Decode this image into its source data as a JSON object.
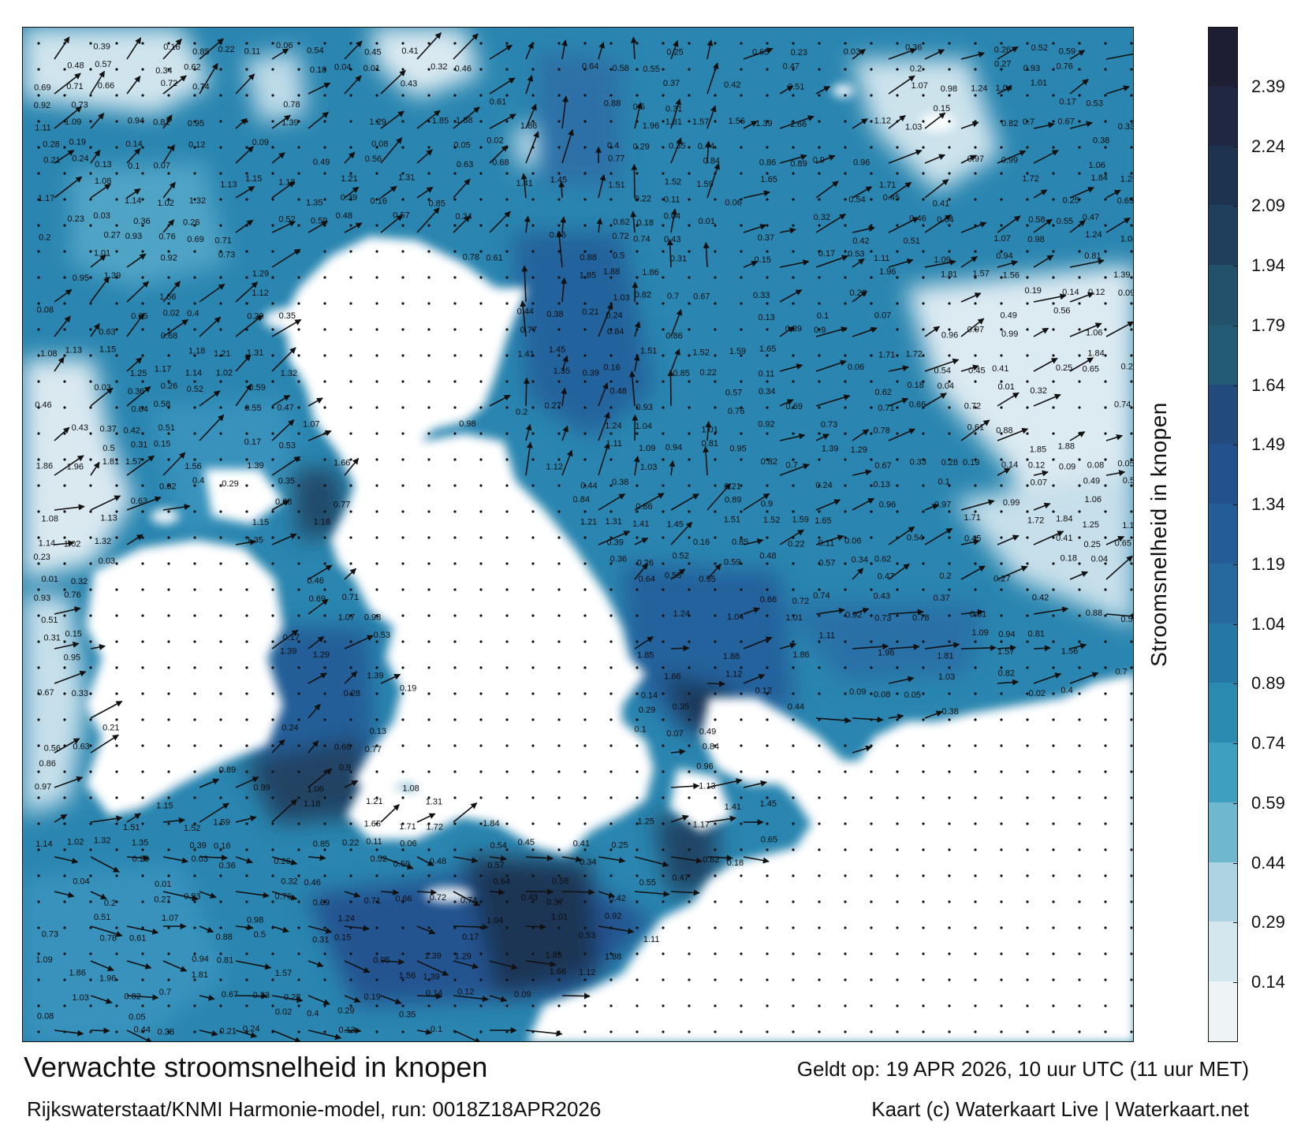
{
  "title": "Verwachte stroomsnelheid in knopen",
  "subtitle": "Rijkswaterstaat/KNMI Harmonie-model, run: 0018Z18APR2026",
  "valid_time": "Geldt op: 19 APR 2026, 10 uur UTC (11 uur MET)",
  "credit": "Kaart (c) Waterkaart Live | Waterkaart.net",
  "colorbar": {
    "title": "Stroomsnelheid in knopen",
    "ticks": [
      "0.14",
      "0.29",
      "0.44",
      "0.59",
      "0.74",
      "0.89",
      "1.04",
      "1.19",
      "1.34",
      "1.49",
      "1.64",
      "1.79",
      "1.94",
      "2.09",
      "2.24",
      "2.39"
    ],
    "colors": [
      "#eef3f6",
      "#d4e6ee",
      "#aed4e2",
      "#6fb7cf",
      "#3f9fc0",
      "#2a8ab0",
      "#2577a6",
      "#25699f",
      "#245c97",
      "#23518e",
      "#234a7c",
      "#245b74",
      "#23506a",
      "#1f3f5d",
      "#1d3350",
      "#1f2742",
      "#1d1e34"
    ]
  },
  "map": {
    "land_color": "#ffffff",
    "sea_color": "#2a86b0",
    "strong_current_color": "#1b3a5c",
    "arrow_color": "#111111",
    "speed_labels": [
      "0.39",
      "0.16",
      "0.85",
      "0.22",
      "0.11",
      "0.06",
      "0.54",
      "0.45",
      "0.41",
      "0.25",
      "0.65",
      "0.23",
      "0.03",
      "0.36",
      "0.26",
      "0.52",
      "0.59",
      "0.48",
      "0.57",
      "0.34",
      "0.62",
      "0.18",
      "0.04",
      "0.01",
      "0.32",
      "0.46",
      "0.64",
      "0.58",
      "0.55",
      "0.47",
      "0.2",
      "0.27",
      "0.93",
      "0.76",
      "0.69",
      "0.71",
      "0.66",
      "0.72",
      "0.74",
      "0.43",
      "0.37",
      "0.42",
      "0.51",
      "1.07",
      "0.98",
      "1.24",
      "1.04",
      "1.01",
      "0.92",
      "0.73",
      "0.78",
      "0.61",
      "0.88",
      "0.5",
      "0.31",
      "0.15",
      "0.17",
      "0.53",
      "1.11",
      "1.09",
      "0.94",
      "0.81",
      "0.95",
      "1.39",
      "1.29",
      "1.85",
      "1.88",
      "1.86",
      "1.96",
      "1.81",
      "1.57",
      "1.56",
      "1.39",
      "1.66",
      "1.12",
      "1.03",
      "0.82",
      "0.7",
      "0.67",
      "0.33",
      "0.28",
      "0.19",
      "0.14",
      "0.12",
      "0.09",
      "0.08",
      "0.05",
      "0.02",
      "0.4",
      "0.29",
      "0.35",
      "0.44",
      "0.38",
      "0.21",
      "0.24",
      "0.13",
      "0.1",
      "0.07",
      "0.49",
      "0.56",
      "0.63",
      "0.68",
      "0.77",
      "0.84",
      "0.86",
      "0.89",
      "0.9",
      "0.96",
      "0.97",
      "0.99",
      "1.06",
      "1.08",
      "1.13",
      "1.15",
      "1.18",
      "1.21",
      "1.31",
      "1.41",
      "1.45",
      "1.51",
      "1.52",
      "1.59",
      "1.65",
      "1.71",
      "1.72",
      "1.84",
      "1.25",
      "1.17",
      "1.14",
      "1.02",
      "1.32",
      "1.35"
    ]
  }
}
